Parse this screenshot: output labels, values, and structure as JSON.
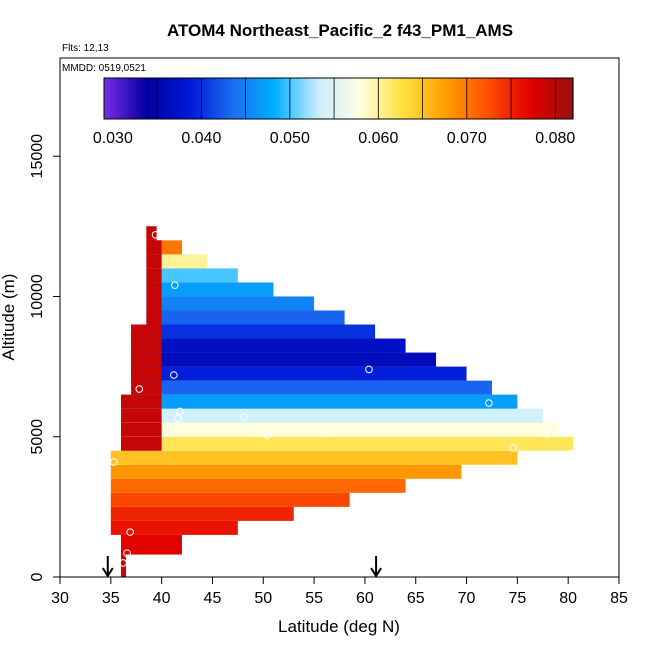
{
  "chart_data": {
    "type": "heatmap",
    "title": "ATOM4 Northeast_Pacific_2 f43_PM1_AMS",
    "flights_label": "Flts: 12,13",
    "dates_label": "MMDD: 0519,0521",
    "xlabel": "Latitude (deg N)",
    "ylabel": "Altitude (m)",
    "xlim": [
      30,
      85
    ],
    "ylim": [
      0,
      18500
    ],
    "xticks": [
      "30",
      "35",
      "40",
      "45",
      "50",
      "55",
      "60",
      "65",
      "70",
      "75",
      "80",
      "85"
    ],
    "yticks": [
      "0",
      "5000",
      "10000",
      "15000"
    ],
    "colorbar": {
      "min": 0.029,
      "max": 0.082,
      "tick_values": [
        0.03,
        0.04,
        0.05,
        0.06,
        0.07,
        0.08
      ],
      "tick_labels": [
        "0.030",
        "0.040",
        "0.050",
        "0.060",
        "0.070",
        "0.080"
      ],
      "colors": [
        "#7a2ee8",
        "#0000a0",
        "#0018d8",
        "#1a6cf0",
        "#00b0ff",
        "#c8ecff",
        "#ffffe0",
        "#ffe040",
        "#ffa000",
        "#ff5000",
        "#e00000",
        "#9a1010"
      ]
    },
    "profile_bands": [
      {
        "alt_bottom": 0,
        "alt_top": 800,
        "lat_end": 36.5,
        "value": 0.079
      },
      {
        "alt_bottom": 800,
        "alt_top": 1500,
        "lat_end": 42,
        "value": 0.077
      },
      {
        "alt_bottom": 1500,
        "alt_top": 2000,
        "lat_end": 47.5,
        "value": 0.076
      },
      {
        "alt_bottom": 2000,
        "alt_top": 2500,
        "lat_end": 53,
        "value": 0.075
      },
      {
        "alt_bottom": 2500,
        "alt_top": 3000,
        "lat_end": 58.5,
        "value": 0.073
      },
      {
        "alt_bottom": 3000,
        "alt_top": 3500,
        "lat_end": 64,
        "value": 0.071
      },
      {
        "alt_bottom": 3500,
        "alt_top": 4000,
        "lat_end": 69.5,
        "value": 0.068
      },
      {
        "alt_bottom": 4000,
        "alt_top": 4500,
        "lat_end": 75,
        "value": 0.065
      },
      {
        "alt_bottom": 4500,
        "alt_top": 5000,
        "lat_end": 80.5,
        "value": 0.062
      },
      {
        "alt_bottom": 5000,
        "alt_top": 5500,
        "lat_end": 79,
        "value": 0.058
      },
      {
        "alt_bottom": 5500,
        "alt_top": 6000,
        "lat_end": 77.5,
        "value": 0.054
      },
      {
        "alt_bottom": 6000,
        "alt_top": 6500,
        "lat_end": 75,
        "value": 0.047
      },
      {
        "alt_bottom": 6500,
        "alt_top": 7000,
        "lat_end": 72.5,
        "value": 0.043
      },
      {
        "alt_bottom": 7000,
        "alt_top": 7500,
        "lat_end": 70,
        "value": 0.039
      },
      {
        "alt_bottom": 7500,
        "alt_top": 8000,
        "lat_end": 67,
        "value": 0.036
      },
      {
        "alt_bottom": 8000,
        "alt_top": 8500,
        "lat_end": 64,
        "value": 0.037
      },
      {
        "alt_bottom": 8500,
        "alt_top": 9000,
        "lat_end": 61,
        "value": 0.04
      },
      {
        "alt_bottom": 9000,
        "alt_top": 9500,
        "lat_end": 58,
        "value": 0.043
      },
      {
        "alt_bottom": 9500,
        "alt_top": 10000,
        "lat_end": 55,
        "value": 0.045
      },
      {
        "alt_bottom": 10000,
        "alt_top": 10500,
        "lat_end": 51,
        "value": 0.047
      },
      {
        "alt_bottom": 10500,
        "alt_top": 11000,
        "lat_end": 47.5,
        "value": 0.05
      },
      {
        "alt_bottom": 11000,
        "alt_top": 11500,
        "lat_end": 44.5,
        "value": 0.06
      },
      {
        "alt_bottom": 11500,
        "alt_top": 12000,
        "lat_end": 42,
        "value": 0.07
      },
      {
        "alt_bottom": 12000,
        "alt_top": 12500,
        "lat_end": 39.5,
        "value": 0.078
      }
    ],
    "samples": [
      {
        "lat": 36.2,
        "alt": 500
      },
      {
        "lat": 36.6,
        "alt": 850
      },
      {
        "lat": 36.9,
        "alt": 1600
      },
      {
        "lat": 35.3,
        "alt": 4100
      },
      {
        "lat": 37.8,
        "alt": 6700
      },
      {
        "lat": 39.4,
        "alt": 12200
      },
      {
        "lat": 41.3,
        "alt": 10400
      },
      {
        "lat": 41.2,
        "alt": 7200
      },
      {
        "lat": 41.8,
        "alt": 5900
      },
      {
        "lat": 41.6,
        "alt": 5650
      },
      {
        "lat": 48.1,
        "alt": 5700
      },
      {
        "lat": 50.4,
        "alt": 5050
      },
      {
        "lat": 56,
        "alt": 5150
      },
      {
        "lat": 60.4,
        "alt": 7400
      },
      {
        "lat": 72.2,
        "alt": 6200
      },
      {
        "lat": 74.6,
        "alt": 4600
      },
      {
        "lat": 77.9,
        "alt": 5100
      },
      {
        "lat": 80.4,
        "alt": 4400
      }
    ],
    "markers": [
      {
        "lat": 34.7,
        "label": "arrow"
      },
      {
        "lat": 61.1,
        "label": "arrow"
      }
    ],
    "grid": false,
    "legend": "top"
  }
}
